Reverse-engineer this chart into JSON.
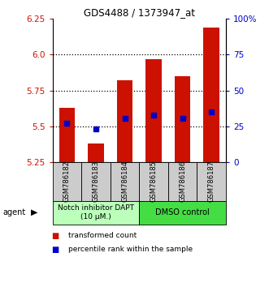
{
  "title": "GDS4488 / 1373947_at",
  "samples": [
    "GSM786182",
    "GSM786183",
    "GSM786184",
    "GSM786185",
    "GSM786186",
    "GSM786187"
  ],
  "bar_top": [
    5.63,
    5.38,
    5.82,
    5.97,
    5.85,
    6.19
  ],
  "bar_bottom": [
    5.25,
    5.25,
    5.25,
    5.25,
    5.25,
    5.25
  ],
  "blue_dot": [
    5.52,
    5.48,
    5.555,
    5.575,
    5.555,
    5.6
  ],
  "ylim": [
    5.25,
    6.25
  ],
  "yticks_left": [
    5.25,
    5.5,
    5.75,
    6.0,
    6.25
  ],
  "yticks_right": [
    0,
    25,
    50,
    75,
    100
  ],
  "yticks_right_labels": [
    "0",
    "25",
    "50",
    "75",
    "100%"
  ],
  "bar_color": "#cc1100",
  "dot_color": "#0000cc",
  "group1_label": "Notch inhibitor DAPT\n(10 μM.)",
  "group2_label": "DMSO control",
  "group1_color": "#bbffbb",
  "group2_color": "#44dd44",
  "legend_bar_label": "transformed count",
  "legend_dot_label": "percentile rank within the sample",
  "agent_label": "agent",
  "dotted_lines": [
    5.5,
    5.75,
    6.0
  ],
  "bar_width": 0.55
}
